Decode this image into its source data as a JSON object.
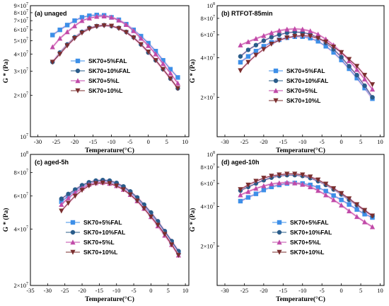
{
  "colors": {
    "SK70+5%FAL": "#3d8fe8",
    "SK70+10%FAL": "#2a5c8a",
    "SK70+5%L": "#c04aa8",
    "SK70+10%L": "#7a2e2e",
    "glow": "#f2a8d8"
  },
  "chart_data": [
    {
      "type": "line",
      "panel_label": "(a) unaged",
      "xlabel": "Temperature(°C)",
      "ylabel": "G * (Pa)",
      "xlim": [
        -32,
        11
      ],
      "x_ticks": [
        -30,
        -25,
        -20,
        -15,
        -10,
        -5,
        0,
        5,
        10
      ],
      "y_scale": "log",
      "ylim": [
        10000000,
        90000000
      ],
      "y_ticks": [
        {
          "value": 10000000,
          "mant": "10",
          "exp": "7"
        },
        {
          "value": 20000000,
          "mant": "2×10",
          "exp": "7"
        },
        {
          "value": 30000000,
          "mant": "3×10",
          "exp": "7"
        },
        {
          "value": 40000000,
          "mant": "4×10",
          "exp": "7"
        },
        {
          "value": 50000000,
          "mant": "5×10",
          "exp": "7"
        },
        {
          "value": 60000000,
          "mant": "6×10",
          "exp": "7"
        },
        {
          "value": 70000000,
          "mant": "7×10",
          "exp": "7"
        },
        {
          "value": 80000000,
          "mant": "8×10",
          "exp": "7"
        },
        {
          "value": 90000000,
          "mant": "9×10",
          "exp": "7"
        }
      ],
      "legend_position": "center-left",
      "series": [
        {
          "name": "SK70+5%FAL",
          "marker": "square",
          "x": [
            -26,
            -24,
            -22,
            -20,
            -18,
            -16,
            -14,
            -12,
            -10,
            -8,
            -6,
            -4,
            -2,
            0,
            2,
            4,
            6,
            8
          ],
          "y": [
            55000000,
            60000000,
            65000000,
            70000000,
            74000000,
            76000000,
            77000000,
            76500000,
            74000000,
            71000000,
            66000000,
            60000000,
            54000000,
            48000000,
            42000000,
            36000000,
            31000000,
            27000000
          ]
        },
        {
          "name": "SK70+10%FAL",
          "marker": "circle",
          "x": [
            -26,
            -24,
            -22,
            -20,
            -18,
            -16,
            -14,
            -12,
            -10,
            -8,
            -6,
            -4,
            -2,
            0,
            2,
            4,
            6,
            8
          ],
          "y": [
            35000000,
            41000000,
            47000000,
            53000000,
            58000000,
            62000000,
            64000000,
            65000000,
            64000000,
            62000000,
            58000000,
            53000000,
            47000000,
            41000000,
            36000000,
            31000000,
            26500000,
            22500000
          ]
        },
        {
          "name": "SK70+5%L",
          "marker": "triangle-up",
          "x": [
            -26,
            -24,
            -22,
            -20,
            -18,
            -16,
            -14,
            -12,
            -10,
            -8,
            -6,
            -4,
            -2,
            0,
            2,
            4,
            6,
            8
          ],
          "y": [
            45000000,
            52000000,
            58000000,
            64000000,
            70000000,
            73000000,
            75000000,
            75500000,
            74000000,
            70500000,
            65500000,
            59000000,
            52000000,
            46000000,
            40000000,
            34000000,
            29000000,
            24500000
          ]
        },
        {
          "name": "SK70+10%L",
          "marker": "triangle-down",
          "x": [
            -26,
            -24,
            -22,
            -20,
            -18,
            -16,
            -14,
            -12,
            -10,
            -8,
            -6,
            -4,
            -2,
            0,
            2,
            4,
            6,
            8
          ],
          "y": [
            35000000,
            40000000,
            46000000,
            52000000,
            57000000,
            61000000,
            63500000,
            64500000,
            64000000,
            61500000,
            57500000,
            52500000,
            47000000,
            41500000,
            36000000,
            31000000,
            26500000,
            22500000
          ]
        }
      ]
    },
    {
      "type": "line",
      "panel_label": "(b) RTFOT-85min",
      "xlabel": "Temperature(°C)",
      "ylabel": "G * (Pa)",
      "xlim": [
        -32,
        11
      ],
      "x_ticks": [
        -30,
        -25,
        -20,
        -15,
        -10,
        -5,
        0,
        5,
        10
      ],
      "y_scale": "log",
      "ylim": [
        10000000,
        100000000
      ],
      "y_ticks": [
        {
          "value": 20000000,
          "mant": "2×10",
          "exp": "7"
        },
        {
          "value": 40000000,
          "mant": "4×10",
          "exp": "7"
        },
        {
          "value": 60000000,
          "mant": "6×10",
          "exp": "7"
        },
        {
          "value": 80000000,
          "mant": "8×10",
          "exp": "7"
        },
        {
          "value": 100000000,
          "mant": "10",
          "exp": "8"
        }
      ],
      "legend_position": "bottom-center",
      "series": [
        {
          "name": "SK70+5%FAL",
          "marker": "square",
          "x": [
            -26,
            -24,
            -22,
            -20,
            -18,
            -16,
            -14,
            -12,
            -10,
            -8,
            -6,
            -4,
            -2,
            0,
            2,
            4,
            6,
            8
          ],
          "y": [
            37000000,
            41000000,
            45000000,
            49000000,
            52500000,
            55000000,
            57000000,
            58000000,
            58000000,
            56500000,
            53500000,
            49000000,
            44000000,
            38500000,
            33000000,
            28000000,
            23500000,
            19500000
          ]
        },
        {
          "name": "SK70+10%FAL",
          "marker": "circle",
          "x": [
            -26,
            -24,
            -22,
            -20,
            -18,
            -16,
            -14,
            -12,
            -10,
            -8,
            -6,
            -4,
            -2,
            0,
            2,
            4,
            6,
            8
          ],
          "y": [
            41000000,
            46000000,
            50000000,
            54000000,
            57500000,
            60000000,
            62000000,
            63000000,
            62500000,
            60500000,
            57000000,
            52000000,
            46500000,
            40500000,
            34500000,
            29500000,
            24500000,
            20000000
          ]
        },
        {
          "name": "SK70+5%L",
          "marker": "triangle-up",
          "x": [
            -26,
            -24,
            -22,
            -20,
            -18,
            -16,
            -14,
            -12,
            -10,
            -8,
            -6,
            -4,
            -2,
            0,
            2,
            4,
            6,
            8
          ],
          "y": [
            50000000,
            53000000,
            56000000,
            59000000,
            62000000,
            64500000,
            66000000,
            66500000,
            66000000,
            64000000,
            60500000,
            55500000,
            50000000,
            44000000,
            38000000,
            32500000,
            27500000,
            23000000
          ]
        },
        {
          "name": "SK70+10%L",
          "marker": "triangle-down",
          "x": [
            -26,
            -24,
            -22,
            -20,
            -18,
            -16,
            -14,
            -12,
            -10,
            -8,
            -6,
            -4,
            -2,
            0,
            2,
            4,
            6,
            8
          ],
          "y": [
            32000000,
            37000000,
            42000000,
            46500000,
            51000000,
            54500000,
            57000000,
            58500000,
            59000000,
            58500000,
            56500000,
            53000000,
            48500000,
            44000000,
            39000000,
            34500000,
            29500000,
            25000000
          ]
        }
      ]
    },
    {
      "type": "line",
      "panel_label": "(c) aged-5h",
      "xlabel": "Temperature(°C)",
      "ylabel": "G * (Pa)",
      "xlim": [
        -35,
        11
      ],
      "x_ticks": [
        -35,
        -30,
        -25,
        -20,
        -15,
        -10,
        -5,
        0,
        5,
        10
      ],
      "y_scale": "log",
      "ylim": [
        20000000,
        100000000
      ],
      "y_ticks": [
        {
          "value": 20000000,
          "mant": "2×10",
          "exp": "7"
        },
        {
          "value": 40000000,
          "mant": "4×10",
          "exp": "7"
        },
        {
          "value": 60000000,
          "mant": "6×10",
          "exp": "7"
        },
        {
          "value": 80000000,
          "mant": "8×10",
          "exp": "7"
        },
        {
          "value": 100000000,
          "mant": "10",
          "exp": "8"
        }
      ],
      "legend_position": "bottom-left",
      "series": [
        {
          "name": "SK70+5%FAL",
          "marker": "square",
          "x": [
            -26,
            -24,
            -22,
            -20,
            -18,
            -16,
            -14,
            -12,
            -10,
            -8,
            -6,
            -4,
            -2,
            0,
            2,
            4,
            6,
            8
          ],
          "y": [
            56000000,
            60000000,
            64000000,
            67500000,
            70000000,
            71500000,
            72000000,
            71500000,
            69500000,
            66500000,
            62500000,
            58000000,
            53000000,
            48000000,
            43000000,
            38500000,
            34000000,
            30000000
          ]
        },
        {
          "name": "SK70+10%FAL",
          "marker": "circle",
          "x": [
            -26,
            -24,
            -22,
            -20,
            -18,
            -16,
            -14,
            -12,
            -10,
            -8,
            -6,
            -4,
            -2,
            0,
            2,
            4,
            6,
            8
          ],
          "y": [
            58000000,
            61500000,
            65000000,
            68500000,
            71000000,
            72500000,
            73000000,
            72500000,
            70500000,
            67500000,
            63500000,
            59000000,
            54000000,
            49000000,
            44000000,
            39000000,
            34500000,
            30500000
          ]
        },
        {
          "name": "SK70+5%L",
          "marker": "triangle-up",
          "x": [
            -26,
            -24,
            -22,
            -20,
            -18,
            -16,
            -14,
            -12,
            -10,
            -8,
            -6,
            -4,
            -2,
            0,
            2,
            4,
            6,
            8
          ],
          "y": [
            54000000,
            58500000,
            62500000,
            66000000,
            69000000,
            70500000,
            71000000,
            70000000,
            68000000,
            65000000,
            61000000,
            56500000,
            51500000,
            46500000,
            41500000,
            37000000,
            33000000,
            29000000
          ]
        },
        {
          "name": "SK70+10%L",
          "marker": "triangle-down",
          "x": [
            -26,
            -24,
            -22,
            -20,
            -18,
            -16,
            -14,
            -12,
            -10,
            -8,
            -6,
            -4,
            -2,
            0,
            2,
            4,
            6,
            8
          ],
          "y": [
            50000000,
            55000000,
            60000000,
            64500000,
            68000000,
            70000000,
            70500000,
            70000000,
            68000000,
            65000000,
            61000000,
            56500000,
            51500000,
            46500000,
            42000000,
            37500000,
            33000000,
            29000000
          ]
        }
      ]
    },
    {
      "type": "line",
      "panel_label": "(d) aged-10h",
      "xlabel": "Temperature(°C)",
      "ylabel": "G * (Pa)",
      "xlim": [
        -32,
        11
      ],
      "x_ticks": [
        -30,
        -25,
        -20,
        -15,
        -10,
        -5,
        0,
        5,
        10
      ],
      "y_scale": "log",
      "ylim": [
        10000000,
        100000000
      ],
      "y_ticks": [
        {
          "value": 20000000,
          "mant": "2×10",
          "exp": "7"
        },
        {
          "value": 40000000,
          "mant": "4×10",
          "exp": "7"
        },
        {
          "value": 60000000,
          "mant": "6×10",
          "exp": "7"
        },
        {
          "value": 80000000,
          "mant": "8×10",
          "exp": "7"
        },
        {
          "value": 100000000,
          "mant": "10",
          "exp": "8"
        }
      ],
      "legend_position": "bottom-center",
      "series": [
        {
          "name": "SK70+5%FAL",
          "marker": "square",
          "x": [
            -26,
            -24,
            -22,
            -20,
            -18,
            -16,
            -14,
            -12,
            -10,
            -8,
            -6,
            -4,
            -2,
            0,
            2,
            4,
            6,
            8
          ],
          "y": [
            44000000,
            47000000,
            50000000,
            53500000,
            56500000,
            58500000,
            60000000,
            60500000,
            60000000,
            58500000,
            56000000,
            52500000,
            48500000,
            45000000,
            41500000,
            38000000,
            35000000,
            33000000
          ]
        },
        {
          "name": "SK70+10%FAL",
          "marker": "circle",
          "x": [
            -26,
            -24,
            -22,
            -20,
            -18,
            -16,
            -14,
            -12,
            -10,
            -8,
            -6,
            -4,
            -2,
            0,
            2,
            4,
            6,
            8
          ],
          "y": [
            53000000,
            56500000,
            60000000,
            63500000,
            66500000,
            68500000,
            69500000,
            69500000,
            68500000,
            66000000,
            62500000,
            58500000,
            54000000,
            49500000,
            45000000,
            41000000,
            37000000,
            34000000
          ]
        },
        {
          "name": "SK70+5%L",
          "marker": "triangle-up",
          "x": [
            -26,
            -24,
            -22,
            -20,
            -18,
            -16,
            -14,
            -12,
            -10,
            -8,
            -6,
            -4,
            -2,
            0,
            2,
            4,
            6,
            8
          ],
          "y": [
            49000000,
            52000000,
            55000000,
            57500000,
            59500000,
            60500000,
            61000000,
            60500000,
            59000000,
            56500000,
            53000000,
            49000000,
            45000000,
            41000000,
            37000000,
            33500000,
            30500000,
            28000000
          ]
        },
        {
          "name": "SK70+10%L",
          "marker": "triangle-down",
          "x": [
            -26,
            -24,
            -22,
            -20,
            -18,
            -16,
            -14,
            -12,
            -10,
            -8,
            -6,
            -4,
            -2,
            0,
            2,
            4,
            6,
            8
          ],
          "y": [
            54000000,
            58500000,
            62500000,
            66000000,
            68500000,
            70000000,
            71000000,
            71000000,
            70000000,
            67500000,
            64000000,
            59500000,
            55000000,
            50500000,
            46000000,
            41500000,
            37500000,
            34000000
          ]
        }
      ]
    }
  ]
}
